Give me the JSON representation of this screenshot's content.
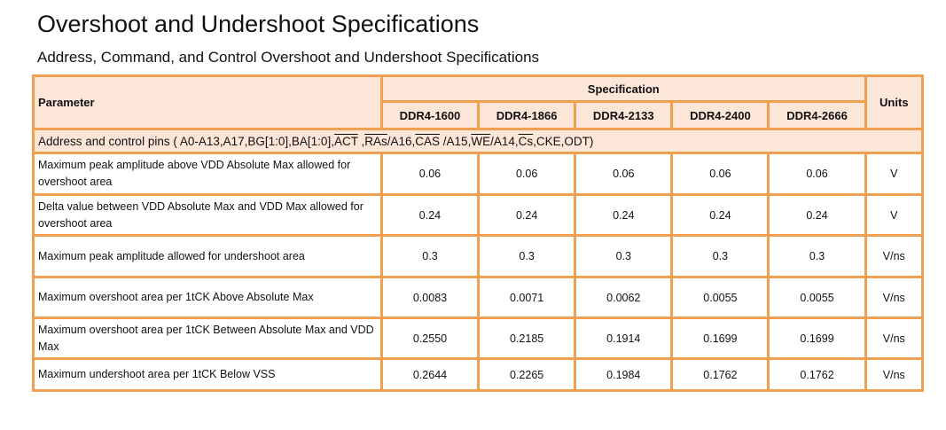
{
  "title": "Overshoot and Undershoot Specifications",
  "subtitle": "Address, Command, and Control Overshoot and Undershoot Specifications",
  "headers": {
    "parameter": "Parameter",
    "specification": "Specification",
    "units": "Units",
    "speeds": [
      "DDR4-1600",
      "DDR4-1866",
      "DDR4-2133",
      "DDR4-2400",
      "DDR4-2666"
    ]
  },
  "pins": [
    {
      "t": "Address and control pins ( A0-A13,A17,BG[1:0],BA[1:0],"
    },
    {
      "t": "ACT",
      "over": true
    },
    {
      "t": " ,"
    },
    {
      "t": "RAs",
      "over": true
    },
    {
      "t": "/A16,"
    },
    {
      "t": "CAS",
      "over": true
    },
    {
      "t": " /A15,"
    },
    {
      "t": "WE",
      "over": true
    },
    {
      "t": "/A14,"
    },
    {
      "t": "Cs",
      "over": true
    },
    {
      "t": ",CKE,ODT)"
    }
  ],
  "rows": [
    {
      "param": "Maximum peak amplitude above VDD Absolute Max allowed for overshoot area",
      "values": [
        "0.06",
        "0.06",
        "0.06",
        "0.06",
        "0.06"
      ],
      "unit": "V"
    },
    {
      "param": "Delta value between VDD Absolute Max and VDD Max allowed for overshoot area",
      "values": [
        "0.24",
        "0.24",
        "0.24",
        "0.24",
        "0.24"
      ],
      "unit": "V"
    },
    {
      "param": "Maximum peak amplitude allowed for undershoot area",
      "values": [
        "0.3",
        "0.3",
        "0.3",
        "0.3",
        "0.3"
      ],
      "unit": "V/ns"
    },
    {
      "param": "Maximum overshoot area per 1tCK Above Absolute Max",
      "values": [
        "0.0083",
        "0.0071",
        "0.0062",
        "0.0055",
        "0.0055"
      ],
      "unit": "V/ns"
    },
    {
      "param": "Maximum overshoot area per 1tCK Between Absolute Max and VDD Max",
      "values": [
        "0.2550",
        "0.2185",
        "0.1914",
        "0.1699",
        "0.1699"
      ],
      "unit": "V/ns"
    },
    {
      "param": "Maximum undershoot area per 1tCK Below VSS",
      "values": [
        "0.2644",
        "0.2265",
        "0.1984",
        "0.1762",
        "0.1762"
      ],
      "unit": "V/ns"
    }
  ]
}
